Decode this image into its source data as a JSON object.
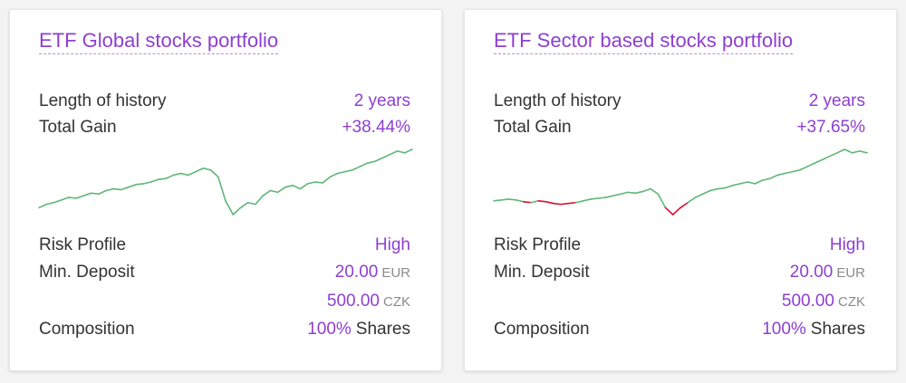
{
  "colors": {
    "accent": "#8e3fd0",
    "chart_up": "#5fb676",
    "chart_down": "#d6102e"
  },
  "cards": [
    {
      "title": "ETF Global stocks portfolio",
      "history_label": "Length of history",
      "history_value": "2 years",
      "gain_label": "Total Gain",
      "gain_value": "+38.44%",
      "risk_label": "Risk Profile",
      "risk_value": "High",
      "deposit_label": "Min. Deposit",
      "deposit_eur_amount": "20.00",
      "deposit_eur_currency": "EUR",
      "deposit_czk_amount": "500.00",
      "deposit_czk_currency": "CZK",
      "composition_label": "Composition",
      "composition_value": "100%",
      "composition_suffix": "Shares",
      "chart_data": {
        "type": "line",
        "values": [
          100,
          102,
          103,
          104.5,
          106,
          105.5,
          107,
          108.5,
          108,
          110,
          111,
          110.5,
          112,
          113.5,
          114,
          115,
          116.5,
          117,
          119,
          120,
          119,
          121,
          123,
          122,
          118,
          104,
          96,
          100,
          103,
          102,
          107,
          110,
          109,
          112,
          113,
          111,
          114,
          115,
          114.5,
          118,
          120,
          121,
          122,
          124,
          126,
          127,
          129,
          131,
          133,
          132,
          134
        ]
      }
    },
    {
      "title": "ETF Sector based stocks portfolio",
      "history_label": "Length of history",
      "history_value": "2 years",
      "gain_label": "Total Gain",
      "gain_value": "+37.65%",
      "risk_label": "Risk Profile",
      "risk_value": "High",
      "deposit_label": "Min. Deposit",
      "deposit_eur_amount": "20.00",
      "deposit_eur_currency": "EUR",
      "deposit_czk_amount": "500.00",
      "deposit_czk_currency": "CZK",
      "composition_label": "Composition",
      "composition_value": "100%",
      "composition_suffix": "Shares",
      "chart_data": {
        "type": "line",
        "values": [
          100,
          100.5,
          101,
          100.5,
          99.5,
          99,
          100,
          99.5,
          98.5,
          98,
          98.5,
          99,
          100,
          101,
          101.5,
          102,
          103,
          104,
          105,
          104.5,
          105.5,
          107,
          104,
          96,
          92,
          96,
          99,
          102,
          104,
          106,
          107,
          107.5,
          109,
          110,
          111,
          110,
          112,
          113,
          115,
          116,
          117,
          118,
          120,
          122,
          124,
          126,
          128,
          130,
          128,
          129,
          128
        ]
      }
    }
  ]
}
